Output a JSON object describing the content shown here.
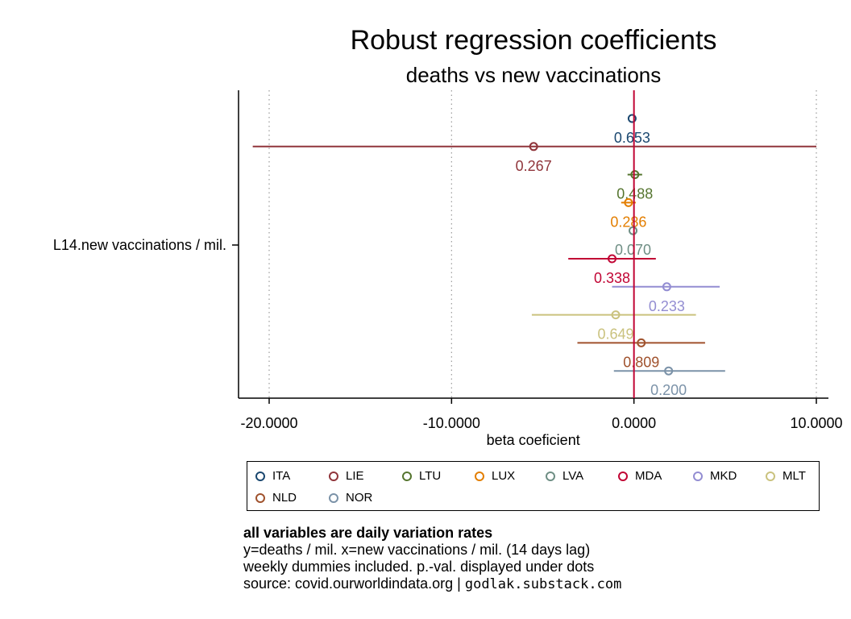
{
  "chart_data": {
    "type": "scatter",
    "title": "Robust regression coefficients",
    "subtitle": "deaths vs new vaccinations",
    "xlabel": "beta coeficient",
    "ylabel": "",
    "y_category": "L14.new vaccinations / mil.",
    "xlim": [
      -21000,
      10000
    ],
    "xticks": [
      -20000,
      -10000,
      0,
      10000
    ],
    "xtick_labels": [
      "-20.0000",
      "-10.0000",
      "0.0000",
      "10.0000"
    ],
    "grid": "vertical dotted",
    "reference_line": 0,
    "legend_position": "bottom",
    "series": [
      {
        "name": "ITA",
        "color": "#1a476f",
        "coef": -100,
        "ci": [
          -100,
          -100
        ],
        "pval_label": "0.653"
      },
      {
        "name": "LIE",
        "color": "#90353b",
        "coef": -5500,
        "ci": [
          -20900,
          10000
        ],
        "pval_label": "0.267"
      },
      {
        "name": "LTU",
        "color": "#55752f",
        "coef": 50,
        "ci": [
          -350,
          450
        ],
        "pval_label": "0.488"
      },
      {
        "name": "LUX",
        "color": "#e37e00",
        "coef": -300,
        "ci": [
          -700,
          100
        ],
        "pval_label": "0.286"
      },
      {
        "name": "LVA",
        "color": "#6e8e84",
        "coef": -50,
        "ci": [
          -50,
          -50
        ],
        "pval_label": "0.070"
      },
      {
        "name": "MDA",
        "color": "#c10534",
        "coef": -1200,
        "ci": [
          -3600,
          1200
        ],
        "pval_label": "0.338"
      },
      {
        "name": "MKD",
        "color": "#938dd2",
        "coef": 1800,
        "ci": [
          -1200,
          4700
        ],
        "pval_label": "0.233"
      },
      {
        "name": "MLT",
        "color": "#cac27e",
        "coef": -1000,
        "ci": [
          -5600,
          3400
        ],
        "pval_label": "0.649"
      },
      {
        "name": "NLD",
        "color": "#a0522d",
        "coef": 400,
        "ci": [
          -3100,
          3900
        ],
        "pval_label": "0.809"
      },
      {
        "name": "NOR",
        "color": "#7b92a8",
        "coef": 1900,
        "ci": [
          -1100,
          5000
        ],
        "pval_label": "0.200"
      }
    ]
  },
  "notes": {
    "line1": "all variables are daily variation rates",
    "line2": "y=deaths / mil. x=new vaccinations / mil. (14 days lag)",
    "line3": "weekly dummies included. p.-val. displayed under dots",
    "line4_prefix": "source: covid.ourworldindata.org |",
    "line4_url": "godlak.substack.com"
  }
}
